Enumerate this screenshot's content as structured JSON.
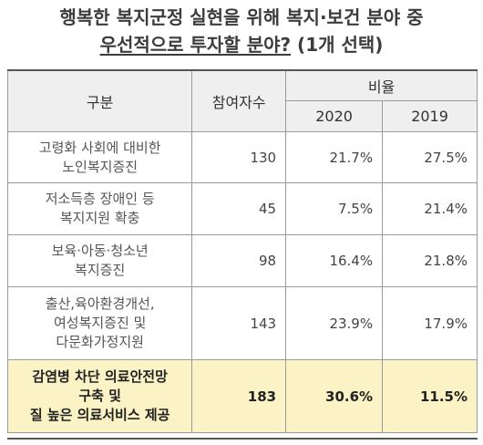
{
  "title": {
    "line1": "행복한 복지군정 실현을 위해 복지·보건 분야 중",
    "line2_underlined": "우선적으로 투자할 분야?",
    "line2_rest": " (1개 선택)"
  },
  "table": {
    "headers": {
      "category": "구분",
      "participants": "참여자수",
      "ratio": "비율",
      "year1": "2020",
      "year2": "2019"
    },
    "rows": [
      {
        "category": "고령화 사회에 대비한\n노인복지증진",
        "participants": "130",
        "y2020": "21.7%",
        "y2019": "27.5%"
      },
      {
        "category": "저소득층 장애인 등\n복지지원 확충",
        "participants": "45",
        "y2020": "7.5%",
        "y2019": "21.4%"
      },
      {
        "category": "보육·아동·청소년\n복지증진",
        "participants": "98",
        "y2020": "16.4%",
        "y2019": "21.8%"
      },
      {
        "category": "출산,육아환경개선,\n여성복지증진 및\n다문화가정지원",
        "participants": "143",
        "y2020": "23.9%",
        "y2019": "17.9%"
      },
      {
        "category": "감염병 차단 의료안전망\n구축 및\n질 높은 의료서비스 제공",
        "participants": "183",
        "y2020": "30.6%",
        "y2019": "11.5%"
      }
    ]
  },
  "colors": {
    "highlight_row": "#fbf3c6",
    "header_bg": "#efefef",
    "border": "#9a9a9a"
  }
}
